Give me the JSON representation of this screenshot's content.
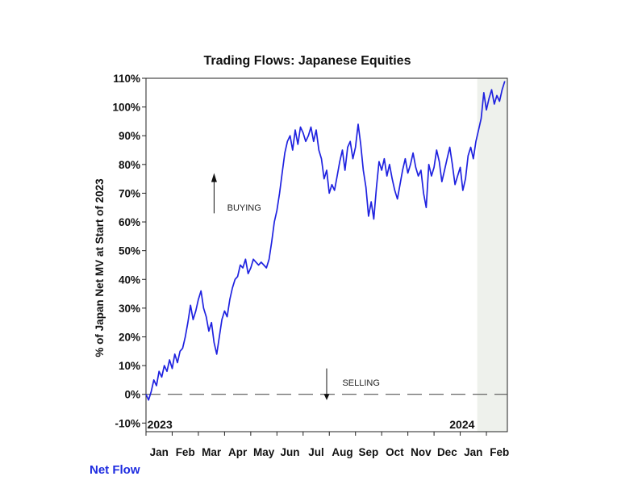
{
  "chart_data": {
    "type": "line",
    "title": "Trading Flows: Japanese Equities",
    "ylabel": "% of Japan Net MV at Start of 2023",
    "xlabel": "",
    "ylim": [
      -13,
      110
    ],
    "x_range": [
      0,
      13.8
    ],
    "y_ticks": [
      "110%",
      "100%",
      "90%",
      "80%",
      "70%",
      "60%",
      "50%",
      "40%",
      "30%",
      "20%",
      "10%",
      "0%",
      "-10%"
    ],
    "y_tick_values": [
      110,
      100,
      90,
      80,
      70,
      60,
      50,
      40,
      30,
      20,
      10,
      0,
      -10
    ],
    "x_ticks": [
      "Jan",
      "Feb",
      "Mar",
      "Apr",
      "May",
      "Jun",
      "Jul",
      "Aug",
      "Sep",
      "Oct",
      "Nov",
      "Dec",
      "Jan",
      "Feb"
    ],
    "year_labels": [
      "2023",
      "2024"
    ],
    "reference_line": 0,
    "shaded_region": {
      "x_start": 12.65,
      "x_end": 13.8
    },
    "annotations": {
      "buying": "BUYING",
      "selling": "SELLING"
    },
    "line_color": "#1f22e0",
    "series": [
      {
        "x": [
          0.0,
          0.1,
          0.2,
          0.3,
          0.4,
          0.5,
          0.6,
          0.7,
          0.8,
          0.9,
          1.0,
          1.1,
          1.2,
          1.3,
          1.4,
          1.5,
          1.6,
          1.7,
          1.8,
          1.9,
          2.0,
          2.1,
          2.2,
          2.3,
          2.4,
          2.5,
          2.6,
          2.7,
          2.8,
          2.9,
          3.0,
          3.1,
          3.2,
          3.3,
          3.4,
          3.5,
          3.6,
          3.7,
          3.8,
          3.9,
          4.0,
          4.1,
          4.2,
          4.3,
          4.4,
          4.5,
          4.6,
          4.7,
          4.8,
          4.9,
          5.0,
          5.1,
          5.2,
          5.3,
          5.4,
          5.5,
          5.6,
          5.7,
          5.8,
          5.9,
          6.0,
          6.1,
          6.2,
          6.3,
          6.4,
          6.5,
          6.6,
          6.7,
          6.8,
          6.9,
          7.0,
          7.1,
          7.2,
          7.3,
          7.4,
          7.5,
          7.6,
          7.7,
          7.8,
          7.9,
          8.0,
          8.1,
          8.2,
          8.3,
          8.4,
          8.5,
          8.6,
          8.7,
          8.8,
          8.9,
          9.0,
          9.1,
          9.2,
          9.3,
          9.4,
          9.5,
          9.6,
          9.7,
          9.8,
          9.9,
          10.0,
          10.1,
          10.2,
          10.3,
          10.4,
          10.5,
          10.6,
          10.7,
          10.8,
          10.9,
          11.0,
          11.1,
          11.2,
          11.3,
          11.4,
          11.5,
          11.6,
          11.7,
          11.8,
          11.9,
          12.0,
          12.1,
          12.2,
          12.3,
          12.4,
          12.5,
          12.6,
          12.7,
          12.8,
          12.9,
          13.0,
          13.1,
          13.2,
          13.3,
          13.4,
          13.5,
          13.6,
          13.7
        ],
        "values": [
          0,
          -2,
          1,
          5,
          3,
          8,
          6,
          10,
          8,
          12,
          9,
          14,
          11,
          15,
          16,
          20,
          25,
          31,
          26,
          29,
          33,
          36,
          30,
          27,
          22,
          25,
          18,
          14,
          20,
          26,
          29,
          27,
          33,
          37,
          40,
          41,
          45,
          44,
          47,
          42,
          44,
          47,
          46,
          45,
          46,
          45,
          44,
          47,
          53,
          60,
          64,
          70,
          77,
          84,
          88,
          90,
          85,
          92,
          87,
          93,
          91,
          88,
          90,
          93,
          88,
          92,
          85,
          82,
          75,
          78,
          70,
          73,
          71,
          76,
          81,
          85,
          78,
          86,
          88,
          82,
          86,
          94,
          87,
          78,
          72,
          62,
          67,
          61,
          72,
          81,
          78,
          82,
          76,
          80,
          75,
          71,
          68,
          73,
          78,
          82,
          77,
          80,
          84,
          79,
          76,
          78,
          70,
          65,
          80,
          76,
          79,
          85,
          81,
          74,
          78,
          82,
          86,
          80,
          73,
          76,
          79,
          71,
          75,
          83,
          86,
          82,
          88,
          92,
          96,
          105,
          99,
          103,
          106,
          101,
          104,
          102,
          106,
          109
        ]
      }
    ]
  },
  "footer": {
    "label": "Net Flow"
  }
}
